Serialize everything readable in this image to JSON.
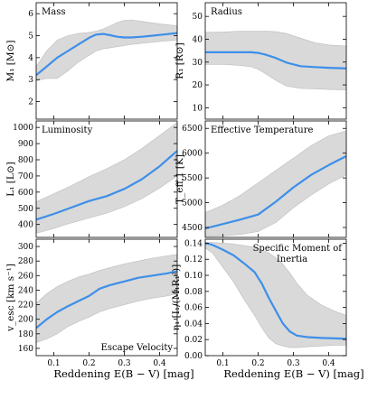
{
  "figure": {
    "xlabel": "Reddening E(B − V) [mag]",
    "band_color": "#d9d9d9",
    "band_edge_color": "#bdbdbd",
    "line_color": "#3d8fe8",
    "shared_x": {
      "xlim": [
        0.05,
        0.45
      ],
      "xticks": [
        0.1,
        0.2,
        0.3,
        0.4
      ],
      "xtick_labels": [
        "0.1",
        "0.2",
        "0.3",
        "0.4"
      ]
    }
  },
  "chart_data": [
    {
      "type": "line",
      "panel": "mass",
      "title": "Mass",
      "title_pos": "top-left",
      "ylabel": "M₁ [M⊙]",
      "ylim": [
        1.2,
        6.5
      ],
      "yticks": [
        2,
        3,
        4,
        5,
        6
      ],
      "ytick_labels": [
        "2",
        "3",
        "4",
        "5",
        "6"
      ],
      "x": [
        0.05,
        0.08,
        0.11,
        0.14,
        0.17,
        0.2,
        0.22,
        0.24,
        0.26,
        0.28,
        0.3,
        0.32,
        0.35,
        0.38,
        0.41,
        0.45
      ],
      "y": [
        3.2,
        3.6,
        4.0,
        4.3,
        4.6,
        4.9,
        5.05,
        5.08,
        5.02,
        4.95,
        4.92,
        4.92,
        4.95,
        5.0,
        5.05,
        5.12
      ],
      "y_low": [
        2.95,
        3.05,
        3.05,
        3.4,
        3.8,
        4.1,
        4.3,
        4.4,
        4.45,
        4.5,
        4.55,
        4.6,
        4.65,
        4.7,
        4.75,
        4.8
      ],
      "y_high": [
        3.6,
        4.3,
        4.8,
        5.0,
        5.1,
        5.15,
        5.2,
        5.3,
        5.45,
        5.6,
        5.7,
        5.72,
        5.65,
        5.58,
        5.52,
        5.45
      ]
    },
    {
      "type": "line",
      "panel": "radius",
      "title": "Radius",
      "title_pos": "top-left",
      "ylabel": "R₁ [R⊙]",
      "ylim": [
        5,
        56
      ],
      "yticks": [
        10,
        20,
        30,
        40,
        50
      ],
      "ytick_labels": [
        "10",
        "20",
        "30",
        "40",
        "50"
      ],
      "x": [
        0.05,
        0.1,
        0.15,
        0.18,
        0.2,
        0.22,
        0.25,
        0.28,
        0.32,
        0.36,
        0.4,
        0.45
      ],
      "y": [
        34.3,
        34.3,
        34.3,
        34.3,
        34.0,
        33.3,
        31.8,
        29.8,
        28.2,
        27.8,
        27.5,
        27.2
      ],
      "y_low": [
        29.0,
        29.0,
        28.5,
        28.0,
        26.8,
        25.0,
        22.0,
        19.5,
        18.5,
        18.3,
        18.0,
        17.8
      ],
      "y_high": [
        43.0,
        43.2,
        43.5,
        43.5,
        43.5,
        43.5,
        43.3,
        42.5,
        40.5,
        38.5,
        37.5,
        37.0
      ]
    },
    {
      "type": "line",
      "panel": "luminosity",
      "title": "Luminosity",
      "title_pos": "top-left",
      "ylabel": "L₁ [L⊙]",
      "ylim": [
        320,
        1040
      ],
      "yticks": [
        400,
        500,
        600,
        700,
        800,
        900,
        1000
      ],
      "ytick_labels": [
        "400",
        "500",
        "600",
        "700",
        "800",
        "900",
        "1000"
      ],
      "x": [
        0.05,
        0.1,
        0.15,
        0.2,
        0.25,
        0.3,
        0.35,
        0.4,
        0.45
      ],
      "y": [
        430,
        465,
        505,
        545,
        575,
        620,
        680,
        760,
        855
      ],
      "y_low": [
        345,
        375,
        410,
        440,
        470,
        510,
        560,
        625,
        700
      ],
      "y_high": [
        540,
        590,
        640,
        695,
        745,
        800,
        870,
        950,
        1030
      ]
    },
    {
      "type": "line",
      "panel": "teff",
      "title": "Effective Temperature",
      "title_pos": "top-left",
      "ylabel": "T_eff,1 [K]",
      "ylim": [
        4300,
        6650
      ],
      "yticks": [
        4500,
        5000,
        5500,
        6000,
        6500
      ],
      "ytick_labels": [
        "4500",
        "5000",
        "5500",
        "6000",
        "6500"
      ],
      "x": [
        0.05,
        0.1,
        0.15,
        0.2,
        0.25,
        0.3,
        0.35,
        0.4,
        0.45
      ],
      "y": [
        4480,
        4570,
        4660,
        4760,
        5020,
        5310,
        5560,
        5760,
        5940
      ],
      "y_low": [
        4320,
        4330,
        4360,
        4420,
        4600,
        4900,
        5150,
        5380,
        5560
      ],
      "y_high": [
        4800,
        4950,
        5150,
        5400,
        5650,
        5900,
        6150,
        6350,
        6450
      ]
    },
    {
      "type": "line",
      "panel": "escape-velocity",
      "title": "Escape Velocity",
      "title_pos": "bottom-right",
      "ylabel": "v_esc [km s⁻¹]",
      "ylim": [
        150,
        310
      ],
      "yticks": [
        160,
        180,
        200,
        220,
        240,
        260,
        280,
        300
      ],
      "ytick_labels": [
        "160",
        "180",
        "200",
        "220",
        "240",
        "260",
        "280",
        "300"
      ],
      "x": [
        0.05,
        0.08,
        0.11,
        0.14,
        0.17,
        0.2,
        0.23,
        0.26,
        0.3,
        0.34,
        0.38,
        0.42,
        0.45
      ],
      "y": [
        188,
        200,
        210,
        218,
        225,
        232,
        242,
        247,
        252,
        257,
        260,
        263,
        266
      ],
      "y_low": [
        168,
        173,
        180,
        190,
        197,
        203,
        210,
        215,
        220,
        225,
        229,
        232,
        235
      ],
      "y_high": [
        222,
        235,
        245,
        252,
        258,
        262,
        267,
        271,
        276,
        280,
        284,
        287,
        289
      ]
    },
    {
      "type": "line",
      "panel": "moment-of-inertia",
      "title": "Specific Moment of Inertia",
      "title_pos": "top-right",
      "ylabel": "η₁ [I₁/(M₁R₁²)]",
      "ylim": [
        0.0,
        0.145
      ],
      "yticks": [
        0.0,
        0.02,
        0.04,
        0.06,
        0.08,
        0.1,
        0.12,
        0.14
      ],
      "ytick_labels": [
        "0.00",
        "0.02",
        "0.04",
        "0.06",
        "0.08",
        "0.10",
        "0.12",
        "0.14"
      ],
      "x": [
        0.05,
        0.07,
        0.1,
        0.13,
        0.16,
        0.19,
        0.21,
        0.23,
        0.25,
        0.27,
        0.29,
        0.31,
        0.34,
        0.38,
        0.42,
        0.45
      ],
      "y": [
        0.14,
        0.138,
        0.132,
        0.125,
        0.115,
        0.104,
        0.09,
        0.072,
        0.056,
        0.04,
        0.03,
        0.025,
        0.023,
        0.022,
        0.0215,
        0.021
      ],
      "y_low": [
        0.134,
        0.128,
        0.11,
        0.092,
        0.07,
        0.05,
        0.035,
        0.022,
        0.015,
        0.012,
        0.01,
        0.01,
        0.011,
        0.012,
        0.013,
        0.013
      ],
      "y_high": [
        0.141,
        0.141,
        0.14,
        0.139,
        0.137,
        0.135,
        0.132,
        0.128,
        0.122,
        0.114,
        0.103,
        0.09,
        0.075,
        0.063,
        0.055,
        0.05
      ]
    }
  ]
}
